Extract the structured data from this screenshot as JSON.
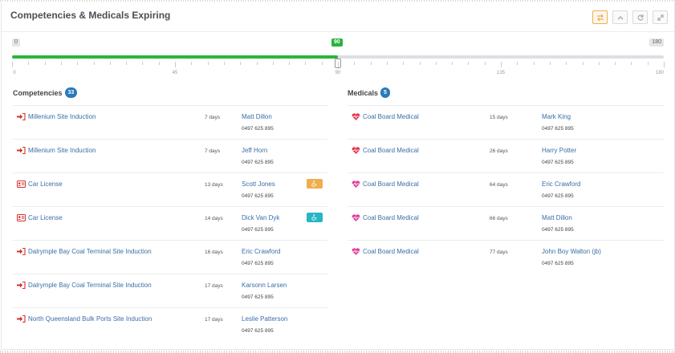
{
  "panel": {
    "title": "Competencies & Medicals Expiring",
    "tools": [
      {
        "icon": "swap-icon",
        "active": true
      },
      {
        "icon": "collapse-icon"
      },
      {
        "icon": "refresh-icon"
      },
      {
        "icon": "expand-icon"
      }
    ]
  },
  "slider": {
    "min_label": "0",
    "max_label": "180",
    "value_label": "90",
    "value": 90,
    "min": 0,
    "max": 180,
    "ticks": [
      "0",
      "45",
      "90",
      "135",
      "180"
    ]
  },
  "competencies": {
    "title": "Competencies",
    "count": "33",
    "rows": [
      {
        "icon": "sign-in-icon",
        "name": "Millenium Site Induction",
        "days": "7 days",
        "person": "Matt Dillon",
        "phone": "0497 625 895"
      },
      {
        "icon": "sign-in-icon",
        "name": "Millenium Site Induction",
        "days": "7 days",
        "person": "Jeff Horn",
        "phone": "0497 625 895"
      },
      {
        "icon": "id-card-icon",
        "name": "Car License",
        "days": "13 days",
        "person": "Scott Jones",
        "phone": "0497 625 895",
        "status": {
          "icon": "wheelchair-icon",
          "color": "#f0ad4e"
        }
      },
      {
        "icon": "id-card-icon",
        "name": "Car License",
        "days": "14 days",
        "person": "Dick Van Dyk",
        "phone": "0497 625 895",
        "status": {
          "icon": "wheelchair-icon",
          "color": "#26b6c6"
        }
      },
      {
        "icon": "sign-in-icon",
        "name": "Dalrymple Bay Coal Terminal Site Induction",
        "days": "16 days",
        "person": "Eric Crawford",
        "phone": "0497 625 895"
      },
      {
        "icon": "sign-in-icon",
        "name": "Dalrymple Bay Coal Terminal Site Induction",
        "days": "17 days",
        "person": "Karsonn Larsen",
        "phone": "0497 625 895"
      },
      {
        "icon": "sign-in-icon",
        "name": "North Queensland Bulk Ports Site Induction",
        "days": "17 days",
        "person": "Leslie Patterson",
        "phone": "0497 625 895"
      }
    ]
  },
  "medicals": {
    "title": "Medicals",
    "count": "5",
    "rows": [
      {
        "icon": "heartbeat-icon",
        "color": "#e5354a",
        "name": "Coal Board Medical",
        "days": "15 days",
        "person": "Mark King",
        "phone": "0497 625 895"
      },
      {
        "icon": "heartbeat-icon",
        "color": "#e5354a",
        "name": "Coal Board Medical",
        "days": "26 days",
        "person": "Harry Potter",
        "phone": "0497 625 895"
      },
      {
        "icon": "heartbeat-icon",
        "color": "#e03c9a",
        "name": "Coal Board Medical",
        "days": "64 days",
        "person": "Eric Crawford",
        "phone": "0497 625 895"
      },
      {
        "icon": "heartbeat-icon",
        "color": "#e03c9a",
        "name": "Coal Board Medical",
        "days": "66 days",
        "person": "Matt Dillon",
        "phone": "0497 625 895"
      },
      {
        "icon": "heartbeat-icon",
        "color": "#e03c9a",
        "name": "Coal Board Medical",
        "days": "77 days",
        "person": "John Boy Walton (jb)",
        "phone": "0497 625 895"
      }
    ]
  },
  "colors": {
    "accent": "#2bb43e",
    "link": "#3a6ea5",
    "badge": "#2a7ab9",
    "red_icon": "#d9302c"
  }
}
